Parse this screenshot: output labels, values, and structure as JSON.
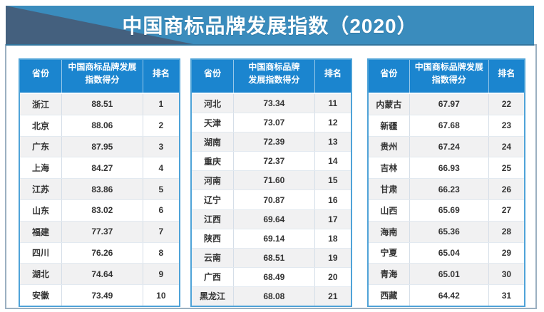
{
  "title": "中国商标品牌发展指数（2020）",
  "colors": {
    "banner_blue": "#3A8CBD",
    "banner_triangle": "#44607E",
    "table_header_blue": "#1B85CF",
    "table_border_blue": "#4FA3D8",
    "panel_border": "#9BB0C1",
    "row_alt_gray": "#F1F1F2",
    "cell_text": "#333333",
    "header_text": "#FFFFFF"
  },
  "chart_data": {
    "type": "table",
    "title": "中国商标品牌发展指数（2020）",
    "tables": [
      {
        "columns": [
          "省份",
          "中国商标品牌发展\n指数得分",
          "排名"
        ],
        "rows": [
          [
            "浙江",
            "88.51",
            "1"
          ],
          [
            "北京",
            "88.06",
            "2"
          ],
          [
            "广东",
            "87.95",
            "3"
          ],
          [
            "上海",
            "84.27",
            "4"
          ],
          [
            "江苏",
            "83.86",
            "5"
          ],
          [
            "山东",
            "83.02",
            "6"
          ],
          [
            "福建",
            "77.37",
            "7"
          ],
          [
            "四川",
            "76.26",
            "8"
          ],
          [
            "湖北",
            "74.64",
            "9"
          ],
          [
            "安徽",
            "73.49",
            "10"
          ]
        ]
      },
      {
        "columns": [
          "省份",
          "中国商标品牌\n发展指数得分",
          "排名"
        ],
        "rows": [
          [
            "河北",
            "73.34",
            "11"
          ],
          [
            "天津",
            "73.07",
            "12"
          ],
          [
            "湖南",
            "72.39",
            "13"
          ],
          [
            "重庆",
            "72.37",
            "14"
          ],
          [
            "河南",
            "71.60",
            "15"
          ],
          [
            "辽宁",
            "70.87",
            "16"
          ],
          [
            "江西",
            "69.64",
            "17"
          ],
          [
            "陕西",
            "69.14",
            "18"
          ],
          [
            "云南",
            "68.51",
            "19"
          ],
          [
            "广西",
            "68.49",
            "20"
          ],
          [
            "黑龙江",
            "68.08",
            "21"
          ]
        ]
      },
      {
        "columns": [
          "省份",
          "中国商标品牌发展\n指数得分",
          "排名"
        ],
        "rows": [
          [
            "内蒙古",
            "67.97",
            "22"
          ],
          [
            "新疆",
            "67.68",
            "23"
          ],
          [
            "贵州",
            "67.24",
            "24"
          ],
          [
            "吉林",
            "66.93",
            "25"
          ],
          [
            "甘肃",
            "66.23",
            "26"
          ],
          [
            "山西",
            "65.69",
            "27"
          ],
          [
            "海南",
            "65.36",
            "28"
          ],
          [
            "宁夏",
            "65.04",
            "29"
          ],
          [
            "青海",
            "65.01",
            "30"
          ],
          [
            "西藏",
            "64.42",
            "31"
          ]
        ]
      }
    ]
  }
}
